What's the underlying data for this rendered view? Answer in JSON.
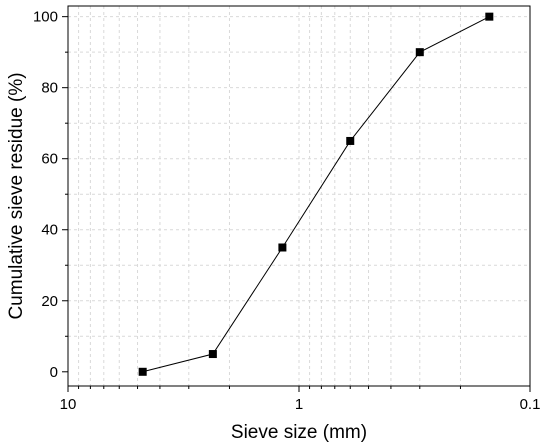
{
  "chart_data": {
    "type": "scatter",
    "title": "",
    "xlabel": "Sieve size (mm)",
    "ylabel": "Cumulative sieve residue (%)",
    "x_scale": "log",
    "x_reversed": true,
    "xlim": [
      10,
      0.1
    ],
    "ylim": [
      -4,
      103
    ],
    "x_ticks": [
      {
        "value": 10,
        "label": "10"
      },
      {
        "value": 1,
        "label": "1"
      },
      {
        "value": 0.1,
        "label": "0.1"
      }
    ],
    "y_ticks": [
      {
        "value": 0,
        "label": "0"
      },
      {
        "value": 20,
        "label": "20"
      },
      {
        "value": 40,
        "label": "40"
      },
      {
        "value": 60,
        "label": "60"
      },
      {
        "value": 80,
        "label": "80"
      },
      {
        "value": 100,
        "label": "100"
      }
    ],
    "grid": true,
    "series": [
      {
        "marker": "square",
        "line": true,
        "color": "#000000",
        "points": [
          {
            "x": 4.75,
            "y": 0
          },
          {
            "x": 2.36,
            "y": 5
          },
          {
            "x": 1.18,
            "y": 35
          },
          {
            "x": 0.6,
            "y": 65
          },
          {
            "x": 0.3,
            "y": 90
          },
          {
            "x": 0.15,
            "y": 100
          }
        ]
      }
    ]
  }
}
